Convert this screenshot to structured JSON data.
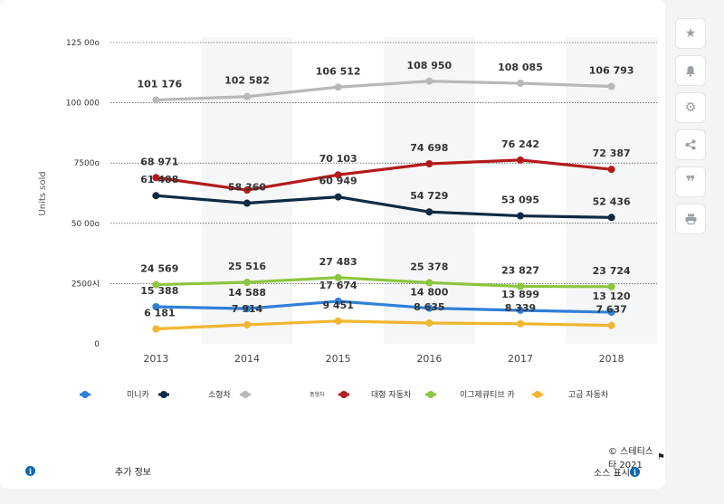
{
  "chart_data": {
    "type": "line",
    "ylabel": "Units sold",
    "categories": [
      "2013",
      "2014",
      "2015",
      "2016",
      "2017",
      "2018"
    ],
    "ylim": [
      0,
      125000
    ],
    "yticks": [
      {
        "value": 0,
        "label": "0"
      },
      {
        "value": 25000,
        "label": "2500시"
      },
      {
        "value": 50000,
        "label": "50 00o"
      },
      {
        "value": 75000,
        "label": "7500o"
      },
      {
        "value": 100000,
        "label": "100 000"
      },
      {
        "value": 125000,
        "label": "125 00o"
      }
    ],
    "series": [
      {
        "name": "미니카",
        "color": "#2f80d8",
        "values": [
          15388,
          14588,
          17674,
          14800,
          13899,
          13120
        ],
        "labels": [
          "15 388",
          "14 588",
          "17 674",
          "14 800",
          "13 899",
          "13 120"
        ]
      },
      {
        "name": "",
        "color": "#0f2a44",
        "values": [
          61488,
          58360,
          60949,
          54729,
          53095,
          52436
        ],
        "labels": [
          "61 488",
          "58 360",
          "60 949",
          "54 729",
          "53 095",
          "52 436"
        ]
      },
      {
        "name": "소형차",
        "color": "#b8b8b8",
        "values": [
          101176,
          102582,
          106512,
          108950,
          108085,
          106793
        ],
        "labels": [
          "101 176",
          "102 582",
          "106 512",
          "108 950",
          "108 085",
          "106 793"
        ]
      },
      {
        "name": "대형 자동차",
        "color": "#b31b1b",
        "values": [
          68971,
          63800,
          70103,
          74698,
          76242,
          72387
        ],
        "labels": [
          "68 971",
          "",
          "70 103",
          "74 698",
          "76 242",
          "72 387"
        ]
      },
      {
        "name": "이그제큐티브 카",
        "color": "#8cc63f",
        "values": [
          24569,
          25516,
          27483,
          25378,
          23827,
          23724
        ],
        "labels": [
          "24 569",
          "25 516",
          "27 483",
          "25 378",
          "23 827",
          "23 724"
        ]
      },
      {
        "name": "고급 자동차",
        "color": "#f1b630",
        "values": [
          6181,
          7914,
          9451,
          8635,
          8339,
          7637
        ],
        "labels": [
          "6 181",
          "7 914",
          "9 451",
          "8 635",
          "8 339",
          "7 637"
        ]
      }
    ],
    "legend_position": "bottom",
    "extra_legend_label": "중형차"
  },
  "footer": {
    "copyright": "© 스테티스타 2021",
    "more_info": "추가 정보",
    "show_source": "소스 표시"
  },
  "icons": {
    "star": "star-icon",
    "bell": "bell-icon",
    "gear": "gear-icon",
    "share": "share-icon",
    "quote": "quote-icon",
    "print": "print-icon"
  }
}
